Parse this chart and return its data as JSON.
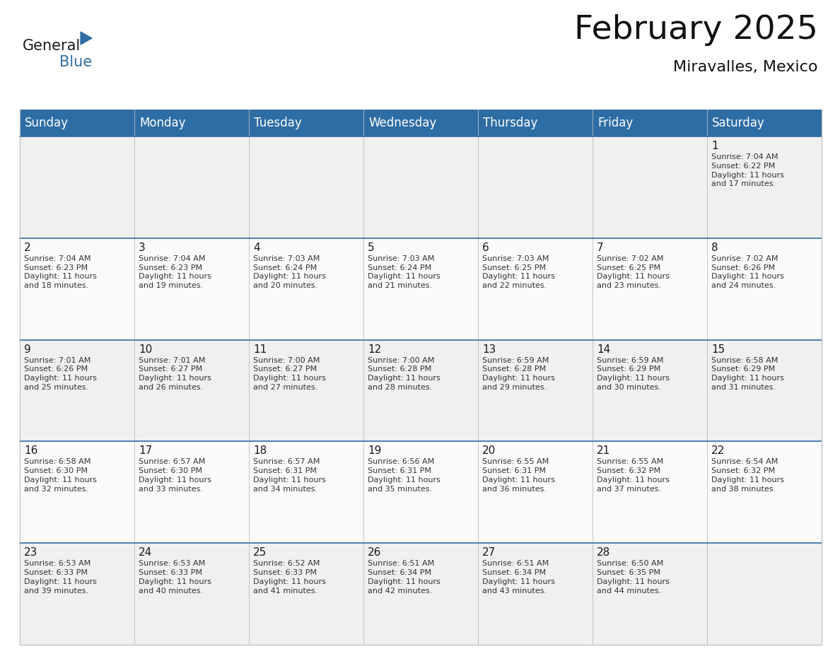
{
  "title": "February 2025",
  "subtitle": "Miravalles, Mexico",
  "header_color": "#2E6DA4",
  "header_text_color": "#FFFFFF",
  "bg_color": "#FFFFFF",
  "cell_bg_even": "#F0F0F0",
  "cell_bg_odd": "#FAFAFA",
  "border_color": "#2E6DA4",
  "grid_color": "#BBBBBB",
  "day_names": [
    "Sunday",
    "Monday",
    "Tuesday",
    "Wednesday",
    "Thursday",
    "Friday",
    "Saturday"
  ],
  "title_fontsize": 34,
  "subtitle_fontsize": 16,
  "header_fontsize": 12,
  "day_num_fontsize": 11,
  "cell_fontsize": 8,
  "logo_color_general": "#1a1a1a",
  "logo_color_blue": "#2E6DA4",
  "weeks": [
    [
      {
        "day": null,
        "info": null
      },
      {
        "day": null,
        "info": null
      },
      {
        "day": null,
        "info": null
      },
      {
        "day": null,
        "info": null
      },
      {
        "day": null,
        "info": null
      },
      {
        "day": null,
        "info": null
      },
      {
        "day": 1,
        "info": "Sunrise: 7:04 AM\nSunset: 6:22 PM\nDaylight: 11 hours\nand 17 minutes."
      }
    ],
    [
      {
        "day": 2,
        "info": "Sunrise: 7:04 AM\nSunset: 6:23 PM\nDaylight: 11 hours\nand 18 minutes."
      },
      {
        "day": 3,
        "info": "Sunrise: 7:04 AM\nSunset: 6:23 PM\nDaylight: 11 hours\nand 19 minutes."
      },
      {
        "day": 4,
        "info": "Sunrise: 7:03 AM\nSunset: 6:24 PM\nDaylight: 11 hours\nand 20 minutes."
      },
      {
        "day": 5,
        "info": "Sunrise: 7:03 AM\nSunset: 6:24 PM\nDaylight: 11 hours\nand 21 minutes."
      },
      {
        "day": 6,
        "info": "Sunrise: 7:03 AM\nSunset: 6:25 PM\nDaylight: 11 hours\nand 22 minutes."
      },
      {
        "day": 7,
        "info": "Sunrise: 7:02 AM\nSunset: 6:25 PM\nDaylight: 11 hours\nand 23 minutes."
      },
      {
        "day": 8,
        "info": "Sunrise: 7:02 AM\nSunset: 6:26 PM\nDaylight: 11 hours\nand 24 minutes."
      }
    ],
    [
      {
        "day": 9,
        "info": "Sunrise: 7:01 AM\nSunset: 6:26 PM\nDaylight: 11 hours\nand 25 minutes."
      },
      {
        "day": 10,
        "info": "Sunrise: 7:01 AM\nSunset: 6:27 PM\nDaylight: 11 hours\nand 26 minutes."
      },
      {
        "day": 11,
        "info": "Sunrise: 7:00 AM\nSunset: 6:27 PM\nDaylight: 11 hours\nand 27 minutes."
      },
      {
        "day": 12,
        "info": "Sunrise: 7:00 AM\nSunset: 6:28 PM\nDaylight: 11 hours\nand 28 minutes."
      },
      {
        "day": 13,
        "info": "Sunrise: 6:59 AM\nSunset: 6:28 PM\nDaylight: 11 hours\nand 29 minutes."
      },
      {
        "day": 14,
        "info": "Sunrise: 6:59 AM\nSunset: 6:29 PM\nDaylight: 11 hours\nand 30 minutes."
      },
      {
        "day": 15,
        "info": "Sunrise: 6:58 AM\nSunset: 6:29 PM\nDaylight: 11 hours\nand 31 minutes."
      }
    ],
    [
      {
        "day": 16,
        "info": "Sunrise: 6:58 AM\nSunset: 6:30 PM\nDaylight: 11 hours\nand 32 minutes."
      },
      {
        "day": 17,
        "info": "Sunrise: 6:57 AM\nSunset: 6:30 PM\nDaylight: 11 hours\nand 33 minutes."
      },
      {
        "day": 18,
        "info": "Sunrise: 6:57 AM\nSunset: 6:31 PM\nDaylight: 11 hours\nand 34 minutes."
      },
      {
        "day": 19,
        "info": "Sunrise: 6:56 AM\nSunset: 6:31 PM\nDaylight: 11 hours\nand 35 minutes."
      },
      {
        "day": 20,
        "info": "Sunrise: 6:55 AM\nSunset: 6:31 PM\nDaylight: 11 hours\nand 36 minutes."
      },
      {
        "day": 21,
        "info": "Sunrise: 6:55 AM\nSunset: 6:32 PM\nDaylight: 11 hours\nand 37 minutes."
      },
      {
        "day": 22,
        "info": "Sunrise: 6:54 AM\nSunset: 6:32 PM\nDaylight: 11 hours\nand 38 minutes."
      }
    ],
    [
      {
        "day": 23,
        "info": "Sunrise: 6:53 AM\nSunset: 6:33 PM\nDaylight: 11 hours\nand 39 minutes."
      },
      {
        "day": 24,
        "info": "Sunrise: 6:53 AM\nSunset: 6:33 PM\nDaylight: 11 hours\nand 40 minutes."
      },
      {
        "day": 25,
        "info": "Sunrise: 6:52 AM\nSunset: 6:33 PM\nDaylight: 11 hours\nand 41 minutes."
      },
      {
        "day": 26,
        "info": "Sunrise: 6:51 AM\nSunset: 6:34 PM\nDaylight: 11 hours\nand 42 minutes."
      },
      {
        "day": 27,
        "info": "Sunrise: 6:51 AM\nSunset: 6:34 PM\nDaylight: 11 hours\nand 43 minutes."
      },
      {
        "day": 28,
        "info": "Sunrise: 6:50 AM\nSunset: 6:35 PM\nDaylight: 11 hours\nand 44 minutes."
      },
      {
        "day": null,
        "info": null
      }
    ]
  ]
}
